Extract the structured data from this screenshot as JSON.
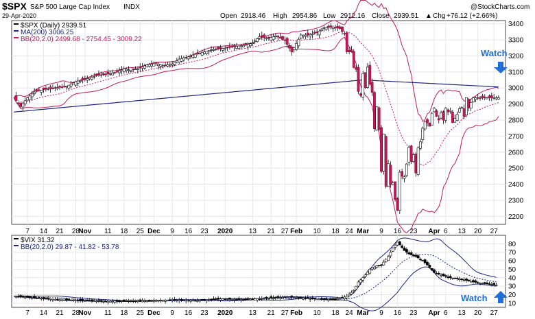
{
  "header": {
    "symbol": "$SPX",
    "name": "S&P 500 Large Cap Index",
    "exchange": "INDX",
    "date": "29-Apr-2020",
    "credit": "@StockCharts.com",
    "open_label": "Open",
    "open": "2918.46",
    "high_label": "High",
    "high": "2954.86",
    "low_label": "Low",
    "low": "2912.16",
    "close_label": "Close",
    "close": "2939.51",
    "chg_label": "Chg",
    "chg": "+76.12 (+2.66%)",
    "up_arrow": "▲"
  },
  "legend_main": [
    {
      "text": "$SPX (Daily) 2939.51",
      "color": "#000000"
    },
    {
      "text": "MA(200) 3006.25",
      "color": "#1a237e"
    },
    {
      "text": "BB(20,2.0) 2499.68 - 2754.45 - 3009.22",
      "color": "#c2185b"
    }
  ],
  "legend_vix": [
    {
      "text": "$VIX 31.32",
      "color": "#000000"
    },
    {
      "text": "BB(20,2.0) 29.87 - 41.82 - 53.78",
      "color": "#1a237e"
    }
  ],
  "annotations": {
    "watch_top": "Watch",
    "watch_bottom": "Watch"
  },
  "x_axis": {
    "labels": [
      {
        "text": "7",
        "d": 6,
        "bold": false
      },
      {
        "text": "14",
        "d": 13,
        "bold": false
      },
      {
        "text": "21",
        "d": 20,
        "bold": false
      },
      {
        "text": "28",
        "d": 27,
        "bold": false
      },
      {
        "text": "Nov",
        "d": 31,
        "bold": true
      },
      {
        "text": "11",
        "d": 41,
        "bold": false
      },
      {
        "text": "18",
        "d": 48,
        "bold": false
      },
      {
        "text": "25",
        "d": 55,
        "bold": false
      },
      {
        "text": "Dec",
        "d": 61,
        "bold": true
      },
      {
        "text": "9",
        "d": 69,
        "bold": false
      },
      {
        "text": "16",
        "d": 76,
        "bold": false
      },
      {
        "text": "23",
        "d": 83,
        "bold": false
      },
      {
        "text": "2020",
        "d": 92,
        "bold": true
      },
      {
        "text": "13",
        "d": 104,
        "bold": false
      },
      {
        "text": "21",
        "d": 112,
        "bold": false
      },
      {
        "text": "27",
        "d": 118,
        "bold": false
      },
      {
        "text": "Feb",
        "d": 123,
        "bold": true
      },
      {
        "text": "10",
        "d": 132,
        "bold": false
      },
      {
        "text": "18",
        "d": 140,
        "bold": false
      },
      {
        "text": "24",
        "d": 146,
        "bold": false
      },
      {
        "text": "Mar",
        "d": 152,
        "bold": true
      },
      {
        "text": "9",
        "d": 160,
        "bold": false
      },
      {
        "text": "16",
        "d": 167,
        "bold": false
      },
      {
        "text": "23",
        "d": 174,
        "bold": false
      },
      {
        "text": "Apr",
        "d": 183,
        "bold": true
      },
      {
        "text": "6",
        "d": 188,
        "bold": false
      },
      {
        "text": "13",
        "d": 195,
        "bold": false
      },
      {
        "text": "20",
        "d": 202,
        "bold": false
      },
      {
        "text": "27",
        "d": 209,
        "bold": false
      }
    ]
  },
  "chart_data": [
    {
      "type": "candlestick",
      "title": "$SPX (Daily)",
      "x_range": [
        "2019-10-01",
        "2020-04-29"
      ],
      "ylim": [
        2150,
        3420
      ],
      "ylabel_ticks": [
        2200,
        2300,
        2400,
        2500,
        2600,
        2700,
        2800,
        2900,
        3000,
        3100,
        3200,
        3300,
        3400
      ],
      "last": {
        "open": 2918.46,
        "high": 2954.86,
        "low": 2912.16,
        "close": 2939.51
      },
      "close_series": {
        "d": [
          0,
          3,
          6,
          9,
          13,
          16,
          20,
          23,
          27,
          30,
          34,
          37,
          41,
          44,
          48,
          51,
          55,
          58,
          62,
          65,
          69,
          72,
          76,
          79,
          83,
          86,
          90,
          93,
          97,
          100,
          104,
          107,
          111,
          114,
          118,
          121,
          125,
          128,
          132,
          135,
          139,
          142,
          144,
          145,
          147,
          148,
          149,
          150,
          151,
          152,
          153,
          154,
          155,
          156,
          157,
          158,
          159,
          160,
          161,
          162,
          163,
          164,
          165,
          166,
          167,
          168,
          169,
          170,
          171,
          172,
          173,
          174,
          175,
          176,
          177,
          178,
          179,
          180,
          181,
          182,
          183,
          184,
          185,
          186,
          187,
          188,
          189,
          190,
          191,
          192,
          193,
          194,
          195,
          196,
          197,
          198,
          199,
          200,
          201,
          202,
          203,
          204,
          205,
          206,
          207,
          208,
          209,
          210,
          211
        ],
        "c": [
          2940,
          2885,
          2938,
          2975,
          2990,
          2996,
          3005,
          3010,
          3040,
          3050,
          3068,
          3080,
          3087,
          3095,
          3120,
          3110,
          3125,
          3145,
          3153,
          3140,
          3150,
          3180,
          3195,
          3210,
          3225,
          3238,
          3245,
          3250,
          3260,
          3265,
          3280,
          3320,
          3310,
          3325,
          3295,
          3225,
          3330,
          3330,
          3345,
          3375,
          3380,
          3370,
          3337,
          3225,
          3225,
          3128,
          3116,
          2978,
          2954,
          3090,
          3003,
          3130,
          3023,
          2972,
          2746,
          2882,
          2741,
          2480,
          2711,
          2386,
          2529,
          2398,
          2409,
          2305,
          2237,
          2475,
          2450,
          2447,
          2526,
          2630,
          2541,
          2584,
          2470,
          2626,
          2664,
          2749,
          2790,
          2783,
          2761,
          2842,
          2874,
          2822,
          2800,
          2846,
          2800,
          2875,
          2850,
          2860,
          2785,
          2810,
          2835,
          2870,
          2878,
          2822,
          2940,
          2875,
          2910,
          2939,
          2939,
          2939,
          2939,
          2939,
          2939,
          2939,
          2939,
          2939,
          2939,
          2939,
          2939
        ]
      },
      "ma200": {
        "start": 2850,
        "peak": 3050,
        "end": 3006.25
      },
      "bollinger": {
        "lower": 2499.68,
        "middle": 2754.45,
        "upper": 3009.22
      }
    },
    {
      "type": "candlestick",
      "title": "$VIX",
      "ylim": [
        5,
        90
      ],
      "ylabel_ticks": [
        10,
        20,
        30,
        40,
        50,
        60,
        70,
        80
      ],
      "last": 31.32,
      "close_series": {
        "d": [
          0,
          10,
          20,
          30,
          40,
          50,
          60,
          70,
          80,
          90,
          100,
          110,
          120,
          130,
          140,
          145,
          148,
          150,
          152,
          155,
          158,
          160,
          163,
          165,
          167,
          170,
          172,
          175,
          178,
          180,
          183,
          186,
          190,
          195,
          200,
          205,
          210
        ],
        "c": [
          18,
          16,
          14,
          13,
          12,
          13,
          13,
          14,
          13,
          15,
          14,
          16,
          17,
          15,
          14,
          18,
          25,
          35,
          40,
          50,
          54,
          55,
          65,
          75,
          82,
          72,
          68,
          65,
          60,
          55,
          46,
          43,
          40,
          38,
          35,
          33,
          31.32
        ]
      },
      "bollinger": {
        "lower": 29.87,
        "middle": 41.82,
        "upper": 53.78
      }
    }
  ]
}
